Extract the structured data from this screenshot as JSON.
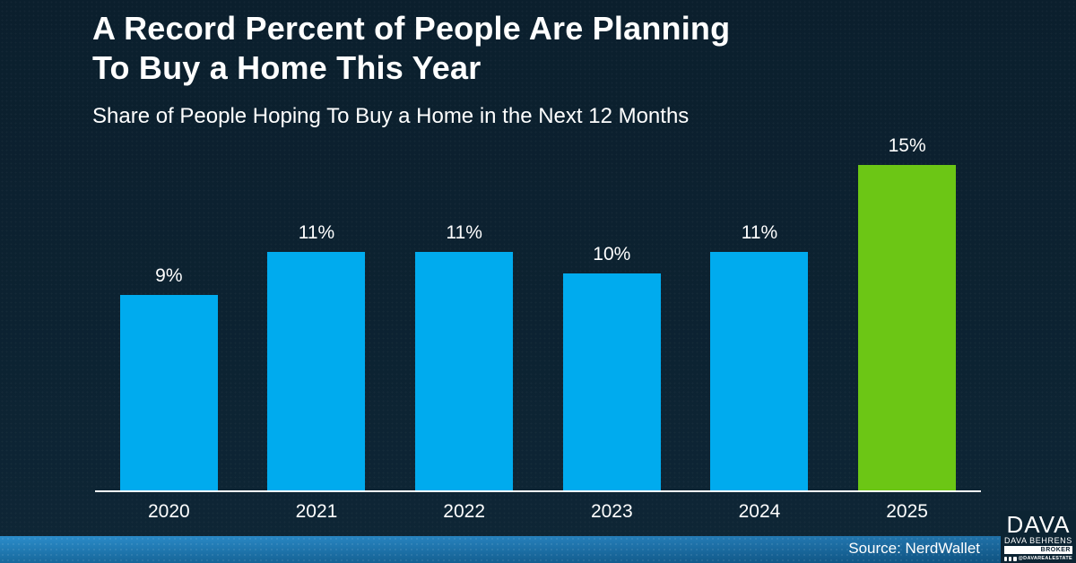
{
  "header": {
    "title_line1": "A Record Percent of People Are Planning",
    "title_line2": "To Buy a Home This Year",
    "subtitle": "Share of People Hoping To Buy a Home in the Next 12 Months"
  },
  "chart_data": {
    "type": "bar",
    "title": "A Record Percent of People Are Planning To Buy a Home This Year",
    "subtitle": "Share of People Hoping To Buy a Home in the Next 12 Months",
    "categories": [
      "2020",
      "2021",
      "2022",
      "2023",
      "2024",
      "2025"
    ],
    "values": [
      9,
      11,
      11,
      10,
      11,
      15
    ],
    "data_labels": [
      "9%",
      "11%",
      "11%",
      "10%",
      "11%",
      "15%"
    ],
    "bar_colors": [
      "#00ABEE",
      "#00ABEE",
      "#00ABEE",
      "#00ABEE",
      "#00ABEE",
      "#6CC615"
    ],
    "highlight_index": 5,
    "xlabel": "",
    "ylabel": "",
    "ylim": [
      0,
      16
    ],
    "grid": false,
    "legend": false
  },
  "footer": {
    "source": "Source: NerdWallet"
  },
  "logo": {
    "name": "DAVA",
    "agent": "DAVA BEHRENS",
    "role": "BROKER",
    "handle": "@DAVAREALESTATE"
  },
  "colors": {
    "background": "#0C2130",
    "bar_blue": "#00ABEE",
    "bar_green": "#6CC615",
    "axis_line": "#FFFFFF",
    "footer_blue_left": "#1E86C8",
    "footer_blue_right": "#1166A0",
    "text": "#FFFFFF"
  }
}
